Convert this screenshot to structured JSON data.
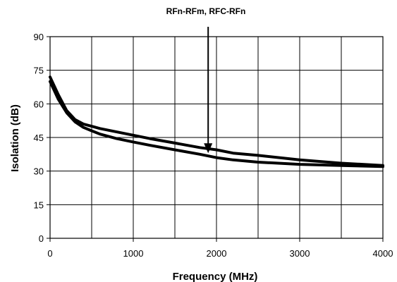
{
  "chart_data": {
    "type": "line",
    "title": "",
    "xlabel": "Frequency (MHz)",
    "ylabel": "Isolation (dB)",
    "xlim": [
      0,
      4000
    ],
    "ylim": [
      0,
      90
    ],
    "xticks": [
      0,
      1000,
      2000,
      3000,
      4000
    ],
    "yticks": [
      0,
      15,
      30,
      45,
      60,
      75,
      90
    ],
    "xtick_labels": [
      "0",
      "1000",
      "2000",
      "3000",
      "4000"
    ],
    "ytick_labels": [
      "0",
      "15",
      "30",
      "45",
      "60",
      "75",
      "90"
    ],
    "grid": true,
    "legend": "none",
    "line_color": "#000000",
    "annotation": {
      "text": "RFn-RFm, RFC-RFn",
      "arrow_target": {
        "x": 1900,
        "y": 38
      }
    },
    "series": [
      {
        "x": [
          0,
          100,
          200,
          300,
          400,
          500,
          600,
          800,
          1000,
          1200,
          1500,
          1800,
          2000,
          2200,
          2500,
          3000,
          3500,
          4000
        ],
        "y": [
          72,
          64,
          57,
          53,
          51,
          50,
          49,
          47.5,
          46,
          44.5,
          42.5,
          40.5,
          39.5,
          38,
          37,
          35,
          33.5,
          32.5
        ]
      },
      {
        "x": [
          0,
          100,
          200,
          300,
          400,
          500,
          600,
          800,
          1000,
          1200,
          1500,
          1800,
          2000,
          2200,
          2500,
          3000,
          3500,
          4000
        ],
        "y": [
          70,
          62,
          56,
          52,
          49.5,
          48,
          46.5,
          44.5,
          43,
          41.5,
          39.5,
          37.5,
          36,
          35,
          34,
          33,
          32.5,
          32
        ]
      }
    ]
  }
}
